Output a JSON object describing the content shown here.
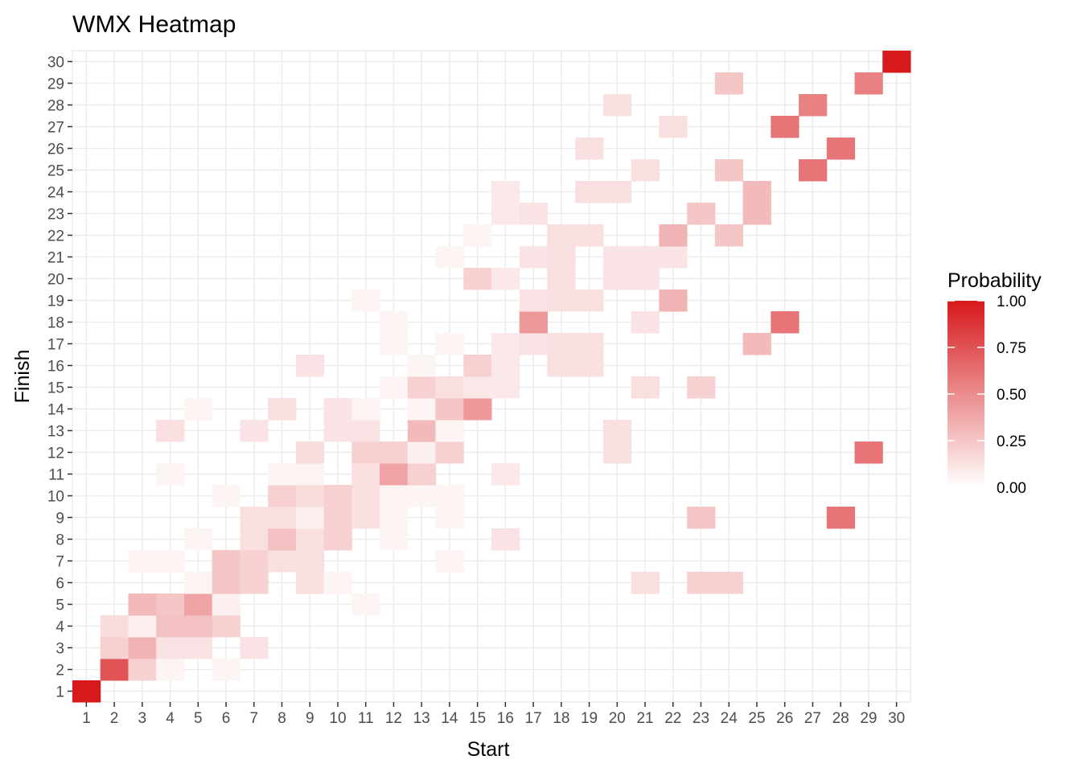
{
  "chart_data": {
    "type": "heatmap",
    "title": "WMX Heatmap",
    "xlabel": "Start",
    "ylabel": "Finish",
    "x_categories": [
      1,
      2,
      3,
      4,
      5,
      6,
      7,
      8,
      9,
      10,
      11,
      12,
      13,
      14,
      15,
      16,
      17,
      18,
      19,
      20,
      21,
      22,
      23,
      24,
      25,
      26,
      27,
      28,
      29,
      30
    ],
    "y_categories": [
      1,
      2,
      3,
      4,
      5,
      6,
      7,
      8,
      9,
      10,
      11,
      12,
      13,
      14,
      15,
      16,
      17,
      18,
      19,
      20,
      21,
      22,
      23,
      24,
      25,
      26,
      27,
      28,
      29,
      30
    ],
    "legend": {
      "title": "Probability",
      "ticks": [
        "0.00",
        "0.25",
        "0.50",
        "0.75",
        "1.00"
      ],
      "range": [
        0,
        1
      ],
      "low_color": "#ffffff",
      "high_color": "#d7191c",
      "placement": "right"
    },
    "background_color": "#ffffff",
    "grid_color": "#ebebeb",
    "grid": true,
    "cells": [
      [
        1,
        1,
        1.0
      ],
      [
        2,
        2,
        0.75
      ],
      [
        3,
        2,
        0.2
      ],
      [
        4,
        2,
        0.05
      ],
      [
        6,
        2,
        0.05
      ],
      [
        2,
        3,
        0.2
      ],
      [
        3,
        3,
        0.33
      ],
      [
        4,
        3,
        0.12
      ],
      [
        5,
        3,
        0.12
      ],
      [
        7,
        3,
        0.12
      ],
      [
        2,
        4,
        0.15
      ],
      [
        3,
        4,
        0.07
      ],
      [
        4,
        4,
        0.27
      ],
      [
        5,
        4,
        0.27
      ],
      [
        6,
        4,
        0.2
      ],
      [
        3,
        5,
        0.3
      ],
      [
        4,
        5,
        0.25
      ],
      [
        5,
        5,
        0.4
      ],
      [
        6,
        5,
        0.07
      ],
      [
        11,
        5,
        0.05
      ],
      [
        5,
        6,
        0.05
      ],
      [
        6,
        6,
        0.25
      ],
      [
        7,
        6,
        0.2
      ],
      [
        9,
        6,
        0.14
      ],
      [
        10,
        6,
        0.05
      ],
      [
        21,
        6,
        0.14
      ],
      [
        23,
        6,
        0.2
      ],
      [
        24,
        6,
        0.2
      ],
      [
        3,
        7,
        0.05
      ],
      [
        4,
        7,
        0.05
      ],
      [
        6,
        7,
        0.25
      ],
      [
        7,
        7,
        0.2
      ],
      [
        8,
        7,
        0.14
      ],
      [
        9,
        7,
        0.14
      ],
      [
        14,
        7,
        0.05
      ],
      [
        5,
        8,
        0.05
      ],
      [
        7,
        8,
        0.14
      ],
      [
        8,
        8,
        0.27
      ],
      [
        9,
        8,
        0.14
      ],
      [
        10,
        8,
        0.2
      ],
      [
        12,
        8,
        0.05
      ],
      [
        16,
        8,
        0.12
      ],
      [
        7,
        9,
        0.14
      ],
      [
        8,
        9,
        0.14
      ],
      [
        9,
        9,
        0.07
      ],
      [
        10,
        9,
        0.2
      ],
      [
        11,
        9,
        0.14
      ],
      [
        12,
        9,
        0.05
      ],
      [
        14,
        9,
        0.05
      ],
      [
        23,
        9,
        0.25
      ],
      [
        28,
        9,
        0.6
      ],
      [
        6,
        10,
        0.05
      ],
      [
        8,
        10,
        0.2
      ],
      [
        9,
        10,
        0.15
      ],
      [
        10,
        10,
        0.2
      ],
      [
        11,
        10,
        0.14
      ],
      [
        12,
        10,
        0.05
      ],
      [
        13,
        10,
        0.05
      ],
      [
        14,
        10,
        0.05
      ],
      [
        4,
        11,
        0.05
      ],
      [
        8,
        11,
        0.05
      ],
      [
        9,
        11,
        0.05
      ],
      [
        11,
        11,
        0.14
      ],
      [
        12,
        11,
        0.4
      ],
      [
        13,
        11,
        0.2
      ],
      [
        16,
        11,
        0.1
      ],
      [
        9,
        12,
        0.15
      ],
      [
        11,
        12,
        0.2
      ],
      [
        12,
        12,
        0.2
      ],
      [
        13,
        12,
        0.07
      ],
      [
        14,
        12,
        0.2
      ],
      [
        20,
        12,
        0.14
      ],
      [
        29,
        12,
        0.6
      ],
      [
        4,
        13,
        0.14
      ],
      [
        7,
        13,
        0.12
      ],
      [
        10,
        13,
        0.12
      ],
      [
        11,
        13,
        0.12
      ],
      [
        13,
        13,
        0.3
      ],
      [
        14,
        13,
        0.05
      ],
      [
        20,
        13,
        0.14
      ],
      [
        5,
        14,
        0.05
      ],
      [
        8,
        14,
        0.14
      ],
      [
        10,
        14,
        0.12
      ],
      [
        11,
        14,
        0.05
      ],
      [
        13,
        14,
        0.05
      ],
      [
        14,
        14,
        0.25
      ],
      [
        15,
        14,
        0.45
      ],
      [
        12,
        15,
        0.05
      ],
      [
        13,
        15,
        0.2
      ],
      [
        14,
        15,
        0.14
      ],
      [
        15,
        15,
        0.1
      ],
      [
        16,
        15,
        0.1
      ],
      [
        21,
        15,
        0.14
      ],
      [
        23,
        15,
        0.2
      ],
      [
        9,
        16,
        0.12
      ],
      [
        13,
        16,
        0.05
      ],
      [
        15,
        16,
        0.2
      ],
      [
        16,
        16,
        0.1
      ],
      [
        18,
        16,
        0.14
      ],
      [
        19,
        16,
        0.14
      ],
      [
        12,
        17,
        0.05
      ],
      [
        14,
        17,
        0.05
      ],
      [
        16,
        17,
        0.1
      ],
      [
        17,
        17,
        0.12
      ],
      [
        18,
        17,
        0.14
      ],
      [
        19,
        17,
        0.14
      ],
      [
        25,
        17,
        0.3
      ],
      [
        12,
        18,
        0.05
      ],
      [
        17,
        18,
        0.45
      ],
      [
        21,
        18,
        0.12
      ],
      [
        26,
        18,
        0.6
      ],
      [
        11,
        19,
        0.05
      ],
      [
        17,
        19,
        0.12
      ],
      [
        18,
        19,
        0.14
      ],
      [
        19,
        19,
        0.14
      ],
      [
        22,
        19,
        0.33
      ],
      [
        15,
        20,
        0.2
      ],
      [
        16,
        20,
        0.1
      ],
      [
        18,
        20,
        0.14
      ],
      [
        20,
        20,
        0.12
      ],
      [
        21,
        20,
        0.12
      ],
      [
        14,
        21,
        0.05
      ],
      [
        17,
        21,
        0.12
      ],
      [
        18,
        21,
        0.14
      ],
      [
        20,
        21,
        0.12
      ],
      [
        21,
        21,
        0.12
      ],
      [
        22,
        21,
        0.12
      ],
      [
        15,
        22,
        0.05
      ],
      [
        18,
        22,
        0.14
      ],
      [
        19,
        22,
        0.14
      ],
      [
        22,
        22,
        0.33
      ],
      [
        24,
        22,
        0.25
      ],
      [
        16,
        23,
        0.1
      ],
      [
        17,
        23,
        0.12
      ],
      [
        23,
        23,
        0.25
      ],
      [
        25,
        23,
        0.3
      ],
      [
        16,
        24,
        0.1
      ],
      [
        19,
        24,
        0.14
      ],
      [
        20,
        24,
        0.14
      ],
      [
        25,
        24,
        0.3
      ],
      [
        21,
        25,
        0.14
      ],
      [
        24,
        25,
        0.25
      ],
      [
        27,
        25,
        0.6
      ],
      [
        19,
        26,
        0.14
      ],
      [
        28,
        26,
        0.6
      ],
      [
        22,
        27,
        0.14
      ],
      [
        26,
        27,
        0.6
      ],
      [
        20,
        28,
        0.14
      ],
      [
        27,
        28,
        0.55
      ],
      [
        24,
        29,
        0.25
      ],
      [
        29,
        29,
        0.55
      ],
      [
        30,
        30,
        1.0
      ]
    ]
  }
}
